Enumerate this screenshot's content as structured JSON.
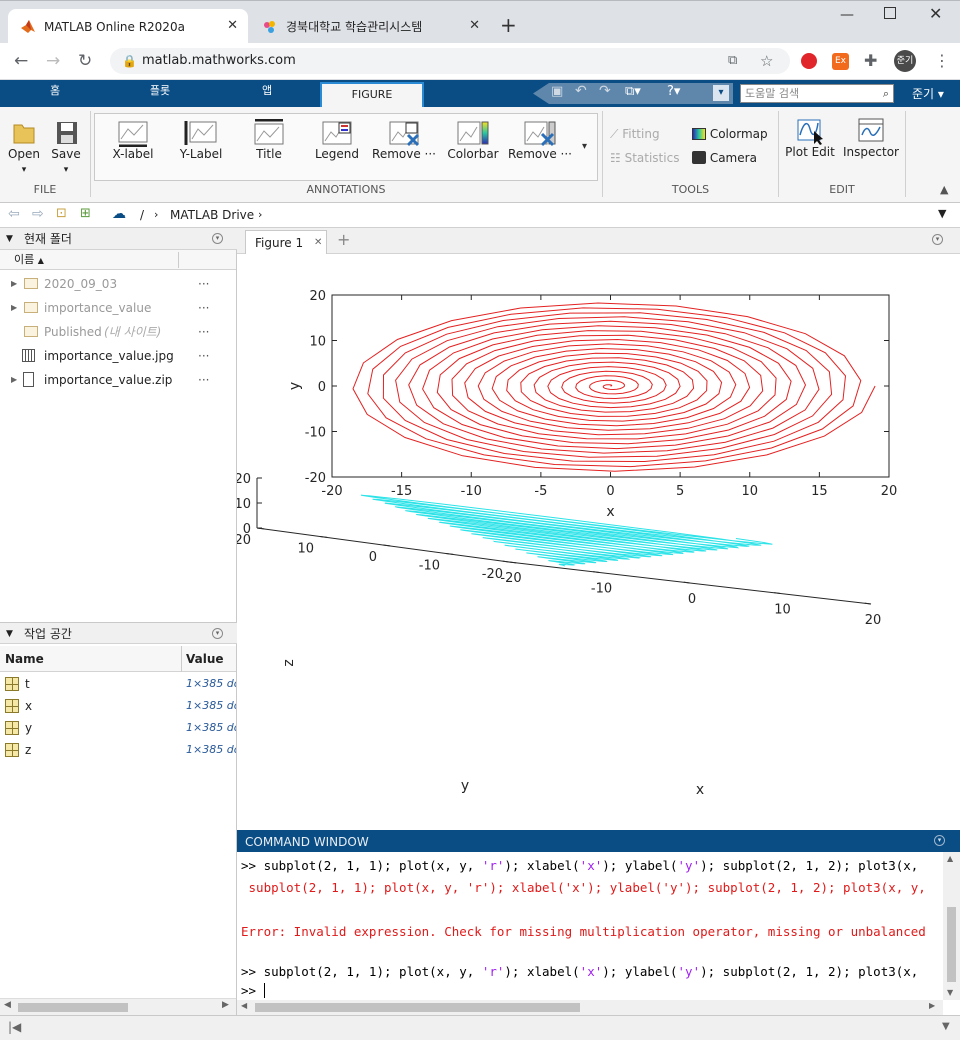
{
  "browser": {
    "tabs": [
      {
        "title": "MATLAB Online R2020a"
      },
      {
        "title": "경북대학교 학습관리시스템"
      }
    ],
    "url": "matlab.mathworks.com",
    "profile_label": "준기"
  },
  "toolstrip": {
    "tabs": [
      "홈",
      "플롯",
      "앱",
      "FIGURE"
    ],
    "search_placeholder": "도움말 검색",
    "user": "준기"
  },
  "ribbon": {
    "file": {
      "open": "Open",
      "save": "Save",
      "group": "FILE"
    },
    "annotations": {
      "buttons": [
        "X-label",
        "Y-Label",
        "Title",
        "Legend",
        "Remove ···",
        "Colorbar",
        "Remove ···"
      ],
      "group": "ANNOTATIONS"
    },
    "tools": {
      "fitting": "Fitting",
      "statistics": "Statistics",
      "colormap": "Colormap",
      "camera": "Camera",
      "group": "TOOLS"
    },
    "edit": {
      "plot_edit": "Plot Edit",
      "inspector": "Inspector",
      "group": "EDIT"
    }
  },
  "pathbar": {
    "sep": "/",
    "drive": "MATLAB Drive"
  },
  "current_folder": {
    "title": "현재 폴더",
    "column": "이름",
    "items": [
      {
        "name": "2020_09_03",
        "type": "folder",
        "dim": true
      },
      {
        "name": "importance_value",
        "type": "folder",
        "dim": true
      },
      {
        "name": "Published",
        "suffix": "(내 사이트)",
        "type": "folder",
        "dim": true
      },
      {
        "name": "importance_value.jpg",
        "type": "image",
        "dim": false
      },
      {
        "name": "importance_value.zip",
        "type": "zip",
        "dim": false
      }
    ]
  },
  "workspace": {
    "title": "작업 공간",
    "columns": [
      "Name",
      "Value"
    ],
    "vars": [
      {
        "name": "t",
        "value": "1×385 dc"
      },
      {
        "name": "x",
        "value": "1×385 dc"
      },
      {
        "name": "y",
        "value": "1×385 dc"
      },
      {
        "name": "z",
        "value": "1×385 dc"
      }
    ]
  },
  "figure": {
    "tab": "Figure 1",
    "plot1": {
      "xlabel": "x",
      "ylabel": "y",
      "xticks": [
        "-20",
        "-15",
        "-10",
        "-5",
        "0",
        "5",
        "10",
        "15",
        "20"
      ],
      "yticks": [
        "20",
        "10",
        "0",
        "-10",
        "-20"
      ],
      "color": "#e32222"
    },
    "plot2": {
      "xlabel": "x",
      "ylabel": "y",
      "zlabel": "z",
      "xticks": [
        "-20",
        "-10",
        "0",
        "10",
        "20"
      ],
      "yticks": [
        "20",
        "10",
        "0",
        "-10",
        "-20"
      ],
      "zticks": [
        "20",
        "10",
        "0"
      ],
      "color": "#2de3e8"
    }
  },
  "chart_data": [
    {
      "type": "line",
      "title": "",
      "xlabel": "x",
      "ylabel": "y",
      "xlim": [
        -20,
        20
      ],
      "ylim": [
        -20,
        20
      ],
      "description": "spiral",
      "series": [
        {
          "color": "#e32222",
          "turns": 19,
          "max_radius": 19
        }
      ]
    },
    {
      "type": "line",
      "title": "",
      "xlabel": "x",
      "ylabel": "y",
      "zlabel": "z",
      "xlim": [
        -20,
        20
      ],
      "ylim": [
        -20,
        20
      ],
      "zlim": [
        0,
        20
      ],
      "series": [
        {
          "color": "#2de3e8",
          "turns": 19,
          "max_radius": 19
        }
      ]
    }
  ],
  "command_window": {
    "title": "COMMAND WINDOW",
    "lines": [
      {
        "prompt": ">> ",
        "pre": "subplot(2, 1, 1); plot(x, y, ",
        "s1": "'r'",
        "mid1": "); xlabel(",
        "s2": "'x'",
        "mid2": "); ylabel(",
        "s3": "'y'",
        "post": "); subplot(2, 1, 2); plot3(x,"
      },
      {
        "text": " subplot(2, 1, 1); plot(x, y, 'r'); xlabel('x'); ylabel('y'); subplot(2, 1, 2); plot3(x, y,"
      },
      {
        "text": "Error: Invalid expression. Check for missing multiplication operator, missing or unbalanced"
      },
      {
        "prompt": ">> ",
        "pre": "subplot(2, 1, 1); plot(x, y, ",
        "s1": "'r'",
        "mid1": "); xlabel(",
        "s2": "'x'",
        "mid2": "); ylabel(",
        "s3": "'y'",
        "post": "); subplot(2, 1, 2); plot3(x,"
      },
      {
        "prompt": ">> "
      }
    ]
  }
}
